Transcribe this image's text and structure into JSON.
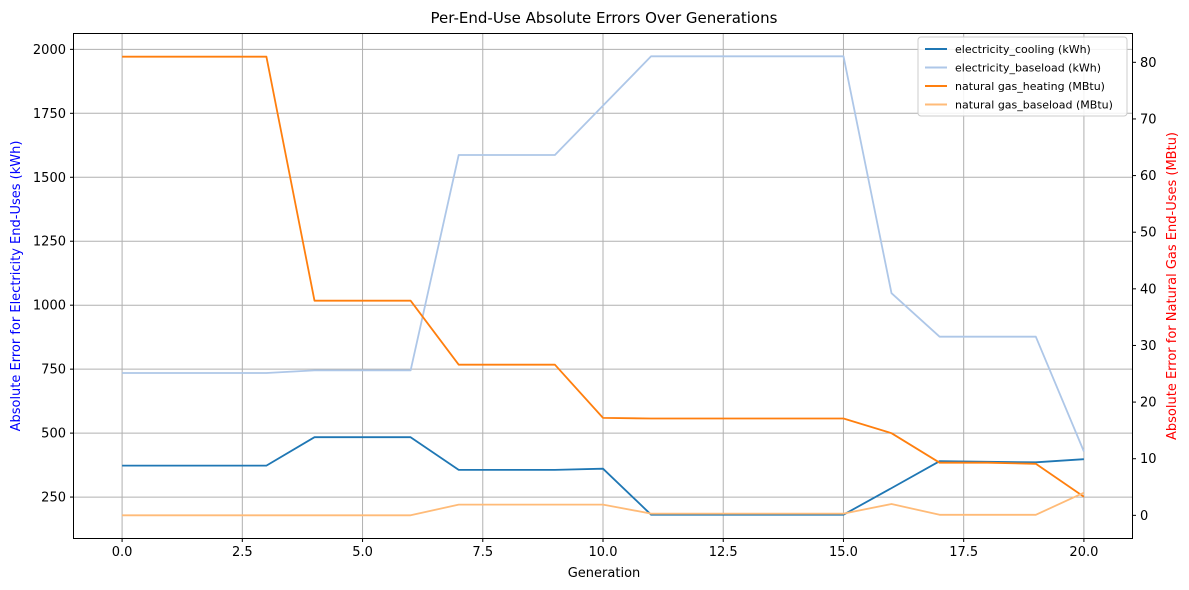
{
  "chart_data": {
    "type": "line",
    "title": "Per-End-Use Absolute Errors Over Generations",
    "xlabel": "Generation",
    "ylabel_left": "Absolute Error for Electricity End-Uses (kWh)",
    "ylabel_right": "Absolute Error for Natural Gas End-Uses (MBtu)",
    "ylabel_left_color": "#0000ff",
    "ylabel_right_color": "#ff0000",
    "xlim": [
      -1,
      21
    ],
    "ylim_left": [
      90,
      2060
    ],
    "ylim_right": [
      -4,
      85
    ],
    "x_ticks": [
      0.0,
      2.5,
      5.0,
      7.5,
      10.0,
      12.5,
      15.0,
      17.5,
      20.0
    ],
    "x_tick_labels": [
      "0.0",
      "2.5",
      "5.0",
      "7.5",
      "10.0",
      "12.5",
      "15.0",
      "17.5",
      "20.0"
    ],
    "y_left_ticks": [
      250,
      500,
      750,
      1000,
      1250,
      1500,
      1750,
      2000
    ],
    "y_right_ticks": [
      0,
      10,
      20,
      30,
      40,
      50,
      60,
      70,
      80
    ],
    "grid": true,
    "legend_position": "top-right",
    "x": [
      0,
      1,
      2,
      3,
      4,
      5,
      6,
      7,
      8,
      9,
      10,
      11,
      12,
      13,
      14,
      15,
      16,
      17,
      18,
      19,
      20
    ],
    "series": [
      {
        "name": "electricity_cooling (kWh)",
        "axis": "left",
        "color": "#1f77b4",
        "values": [
          373,
          373,
          373,
          373,
          484,
          484,
          484,
          356,
          356,
          356,
          361,
          181,
          181,
          181,
          181,
          181,
          285,
          390,
          388,
          386,
          398
        ]
      },
      {
        "name": "electricity_baseload (kWh)",
        "axis": "left",
        "color": "#aec7e8",
        "values": [
          735,
          735,
          735,
          735,
          745,
          745,
          745,
          1587,
          1587,
          1587,
          1780,
          1973,
          1973,
          1973,
          1973,
          1973,
          1047,
          877,
          877,
          877,
          428
        ]
      },
      {
        "name": "natural gas_heating (MBtu)",
        "axis": "right",
        "color": "#ff7f0e",
        "values": [
          81,
          81,
          81,
          81,
          37.9,
          37.9,
          37.9,
          26.6,
          26.6,
          26.6,
          17.2,
          17.1,
          17.1,
          17.1,
          17.1,
          17.1,
          14.5,
          9.3,
          9.3,
          9.1,
          3.3
        ]
      },
      {
        "name": "natural gas_baseload (MBtu)",
        "axis": "right",
        "color": "#ffbb78",
        "values": [
          0,
          0,
          0,
          0,
          0,
          0,
          0,
          1.9,
          1.9,
          1.9,
          1.9,
          0.3,
          0.3,
          0.3,
          0.3,
          0.3,
          2.0,
          0.1,
          0.1,
          0.1,
          4.0
        ]
      }
    ]
  }
}
